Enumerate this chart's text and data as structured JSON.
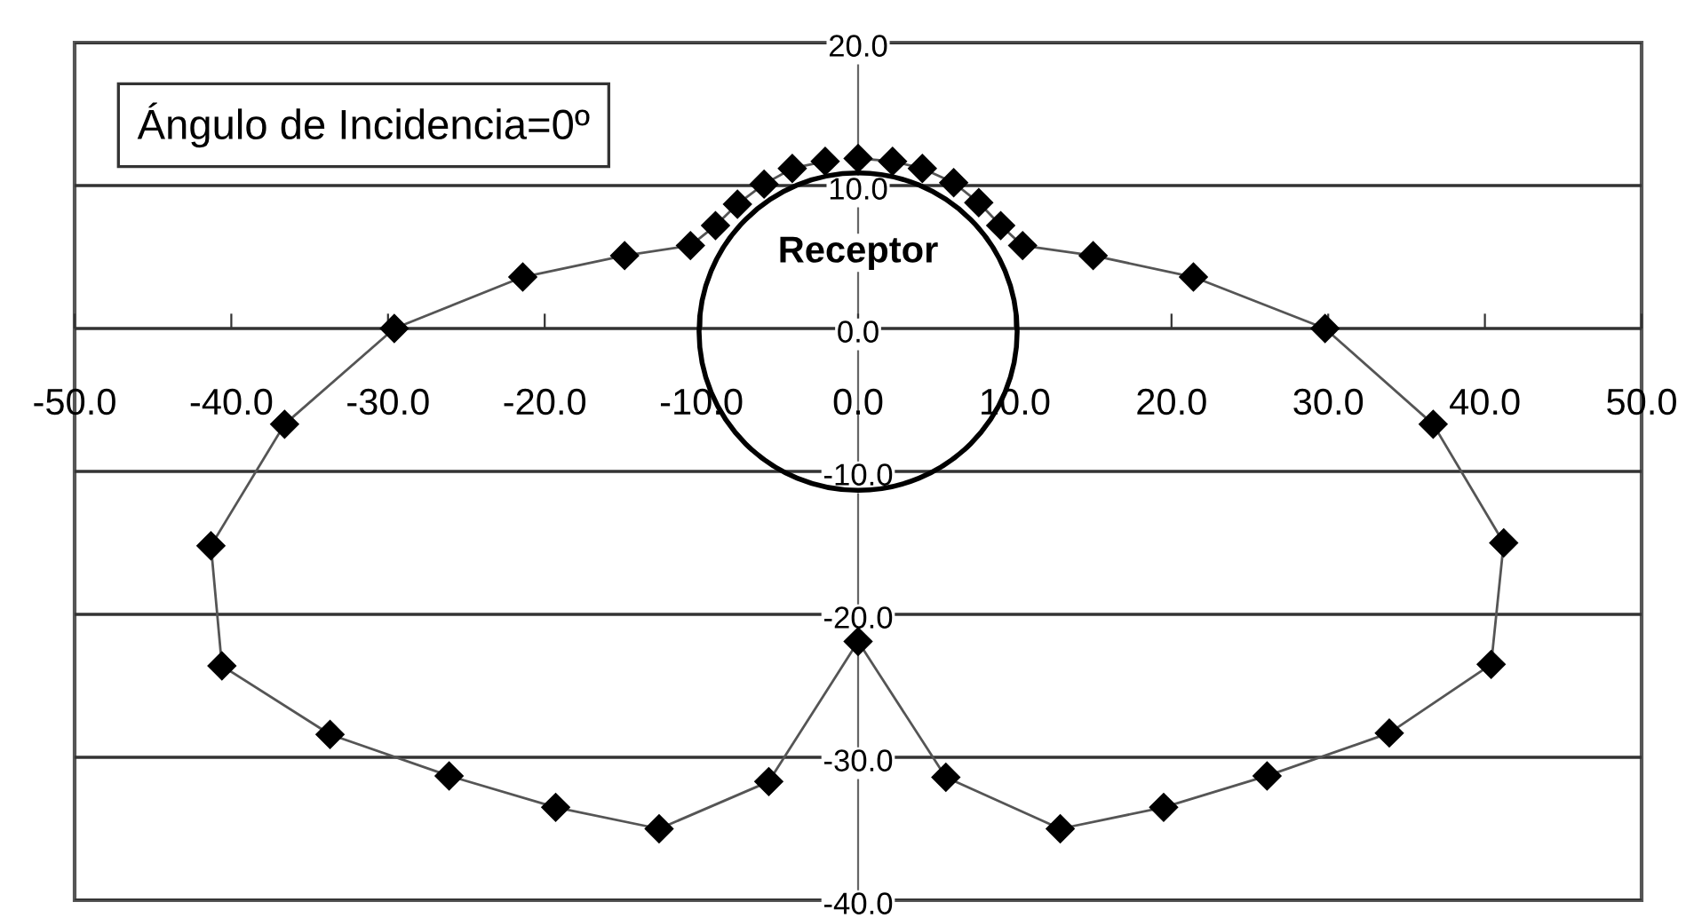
{
  "chart_data": {
    "type": "line",
    "xlim": [
      -50,
      50
    ],
    "ylim": [
      -40,
      20
    ],
    "xticks": [
      {
        "value": -50,
        "label": "-50.0"
      },
      {
        "value": -40,
        "label": "-40.0"
      },
      {
        "value": -30,
        "label": "-30.0"
      },
      {
        "value": -20,
        "label": "-20.0"
      },
      {
        "value": -10,
        "label": "-10.0"
      },
      {
        "value": 0,
        "label": "0.0"
      },
      {
        "value": 10,
        "label": "10.0"
      },
      {
        "value": 20,
        "label": "20.0"
      },
      {
        "value": 30,
        "label": "30.0"
      },
      {
        "value": 40,
        "label": "40.0"
      },
      {
        "value": 50,
        "label": "50.0"
      }
    ],
    "yticks": [
      {
        "value": -40,
        "label": "-40.0"
      },
      {
        "value": -30,
        "label": "-30.0"
      },
      {
        "value": -20,
        "label": "-20.0"
      },
      {
        "value": -10,
        "label": "-10.0"
      },
      {
        "value": 0,
        "label": "0.0"
      },
      {
        "value": 10,
        "label": "10.0"
      },
      {
        "value": 20,
        "label": "20.0"
      }
    ],
    "grid": "y",
    "legend": false,
    "annotations": [
      "Ángulo de Incidencia=0º",
      "Receptor"
    ],
    "series": [
      {
        "color": "#000000",
        "marker": "diamond",
        "line_style": "solid",
        "x": [
          0,
          2.2,
          4.1,
          6.1,
          7.7,
          9.1,
          10.5,
          15.0,
          21.4,
          29.8,
          36.7,
          41.2,
          40.4,
          33.9,
          26.1,
          19.5,
          12.9,
          5.6,
          0,
          -5.7,
          -12.7,
          -19.3,
          -26.1,
          -33.7,
          -40.6,
          -41.3,
          -36.6,
          -29.6,
          -21.4,
          -14.9,
          -10.7,
          -9.1,
          -7.7,
          -6.0,
          -4.2,
          -2.1
        ],
        "values": [
          11.9,
          11.7,
          11.2,
          10.2,
          8.8,
          7.2,
          5.8,
          5.1,
          3.6,
          0,
          -6.7,
          -15.0,
          -23.5,
          -28.3,
          -31.3,
          -33.5,
          -35.0,
          -31.4,
          -21.9,
          -31.7,
          -35.0,
          -33.5,
          -31.3,
          -28.4,
          -23.6,
          -15.2,
          -6.7,
          0,
          3.6,
          5.1,
          5.8,
          7.2,
          8.7,
          10.1,
          11.2,
          11.7
        ]
      }
    ]
  }
}
